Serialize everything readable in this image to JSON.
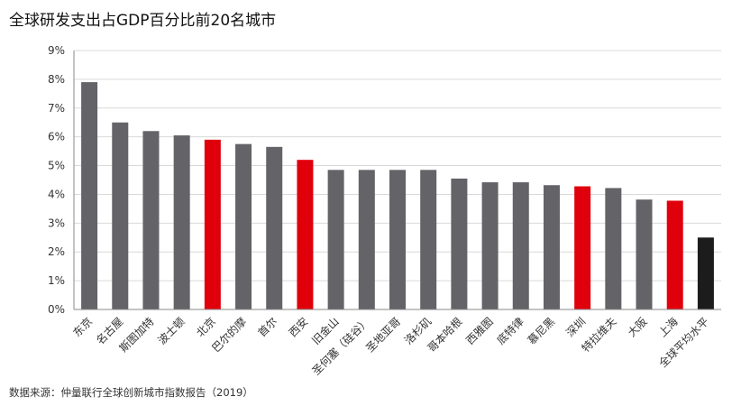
{
  "title": "全球研发支出占GDP百分比前20名城市",
  "source": "数据来源：仲量联行全球创新城市指数报告（2019）",
  "colors": {
    "default": "#636368",
    "china": "#e0000b",
    "global": "#1c1c1c",
    "grid": "#d9d9d9",
    "axis": "#888888",
    "text": "#333333"
  },
  "chart_data": {
    "type": "bar",
    "title": "全球研发支出占GDP百分比前20名城市",
    "xlabel": "",
    "ylabel": "",
    "ylim": [
      0,
      9
    ],
    "yticks": [
      "0%",
      "1%",
      "2%",
      "3%",
      "4%",
      "5%",
      "6%",
      "7%",
      "8%",
      "9%"
    ],
    "grid": true,
    "legend": "none",
    "categories": [
      "东京",
      "名古屋",
      "斯图加特",
      "波士顿",
      "北京",
      "巴尔的摩",
      "首尔",
      "西安",
      "旧金山",
      "圣何塞（硅谷）",
      "圣地亚哥",
      "洛杉矶",
      "哥本哈根",
      "西雅图",
      "底特律",
      "慕尼黑",
      "深圳",
      "特拉维夫",
      "大阪",
      "上海",
      "全球平均水平"
    ],
    "values": [
      7.9,
      6.5,
      6.2,
      6.05,
      5.9,
      5.75,
      5.65,
      5.2,
      4.85,
      4.85,
      4.85,
      4.85,
      4.55,
      4.42,
      4.42,
      4.32,
      4.28,
      4.22,
      3.82,
      3.78,
      2.5
    ],
    "bar_colors": [
      "default",
      "default",
      "default",
      "default",
      "china",
      "default",
      "default",
      "china",
      "default",
      "default",
      "default",
      "default",
      "default",
      "default",
      "default",
      "default",
      "china",
      "default",
      "default",
      "china",
      "global"
    ]
  }
}
